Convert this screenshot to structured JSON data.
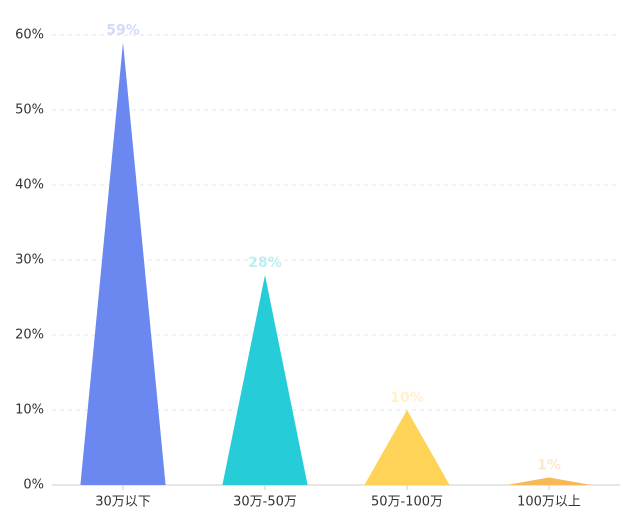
{
  "chart_data": {
    "type": "bar",
    "symbol": "triangle",
    "categories": [
      "30万以下",
      "30万-50万",
      "50万-100万",
      "100万以上"
    ],
    "values": [
      59,
      28,
      10,
      1
    ],
    "value_labels": [
      "59%",
      "28%",
      "10%",
      "1%"
    ],
    "colors": [
      "#6b88f0",
      "#26cdd9",
      "#fed358",
      "#f7b955"
    ],
    "ylim": [
      0,
      60
    ],
    "yticks": [
      {
        "value": 0,
        "label": "0%"
      },
      {
        "value": 10,
        "label": "10%"
      },
      {
        "value": 20,
        "label": "20%"
      },
      {
        "value": 30,
        "label": "30%"
      },
      {
        "value": 40,
        "label": "40%"
      },
      {
        "value": 50,
        "label": "50%"
      },
      {
        "value": 60,
        "label": "60%"
      }
    ],
    "grid": true
  }
}
